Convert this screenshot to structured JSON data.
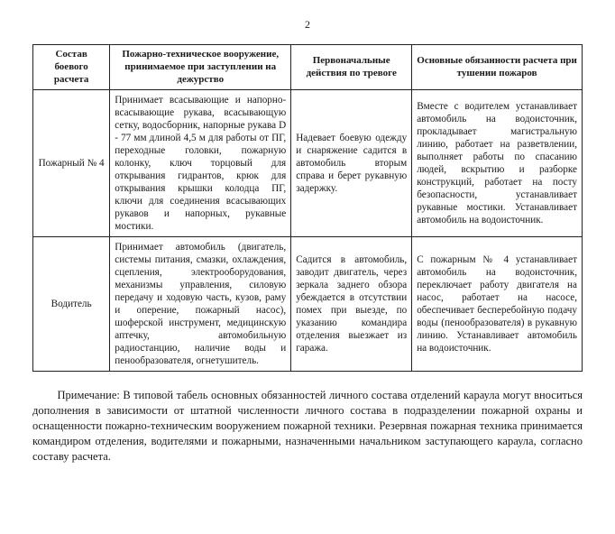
{
  "page_number": "2",
  "headers": {
    "col1": "Состав боевого расчета",
    "col2": "Пожарно-техническое вооружение, принимаемое при заступлении на дежурство",
    "col3": "Первоначальные действия по тревоге",
    "col4": "Основные обязанности расчета при тушении пожаров"
  },
  "rows": [
    {
      "label": "Пожарный № 4",
      "equip": "Принимает всасывающие и напорно-всасывающие рукава, всасывающую сетку, водосборник, напорные рукава D - 77 мм длиной 4,5 м для работы от ПГ, переходные головки, пожарную колонку, ключ торцовый для открывания гидрантов, крюк для открывания крышки колодца ПГ, ключи для соединения всасывающих рукавов и напорных, рукавные мостики.",
      "actions": "Надевает боевую одежду и снаряжение садится в автомобиль вторым справа и берет рукавную задержку.",
      "duties": "Вместе с водителем устанавливает автомобиль на водоисточник, прокладывает магистральную линию, работает на разветвлении, выполняет работы по спасанию людей, вскрытию и разборке конструкций, работает на посту безопасности, устанавливает рукавные мостики. Устанавливает автомобиль на водоисточник."
    },
    {
      "label": "Водитель",
      "equip": "Принимает автомобиль (двигатель, системы питания, смазки, охлаждения, сцепления, электрооборудования, механизмы управления, силовую передачу и ходовую часть, кузов, раму и оперение, пожарный насос), шоферской инструмент, медицинскую аптечку, автомобильную радиостанцию, наличие воды и пенообразователя, огнетушитель.",
      "actions": "Садится в автомобиль, заводит двигатель, через зеркала заднего обзора убеждается в отсутствии помех при выезде, по указанию командира отделения выезжает из гаража.",
      "duties": "С пожарным № 4 устанавливает автомобиль на водоисточник, переключает работу двигателя на насос, работает на насосе, обеспечивает бесперебойную подачу воды (пенообразователя) в рукавную линию. Устанавливает автомобиль на водоисточник."
    }
  ],
  "note": "Примечание: В типовой табель основных обязанностей личного состава отделений караула могут вноситься дополнения в зависимости от штатной численности личного состава в подразделении пожарной охраны и оснащенности пожарно-техническим вооружением пожарной техники. Резервная пожарная техника принимается командиром отделения, водителями и пожарными, назначенными начальником заступающего караула, согласно составу расчета."
}
